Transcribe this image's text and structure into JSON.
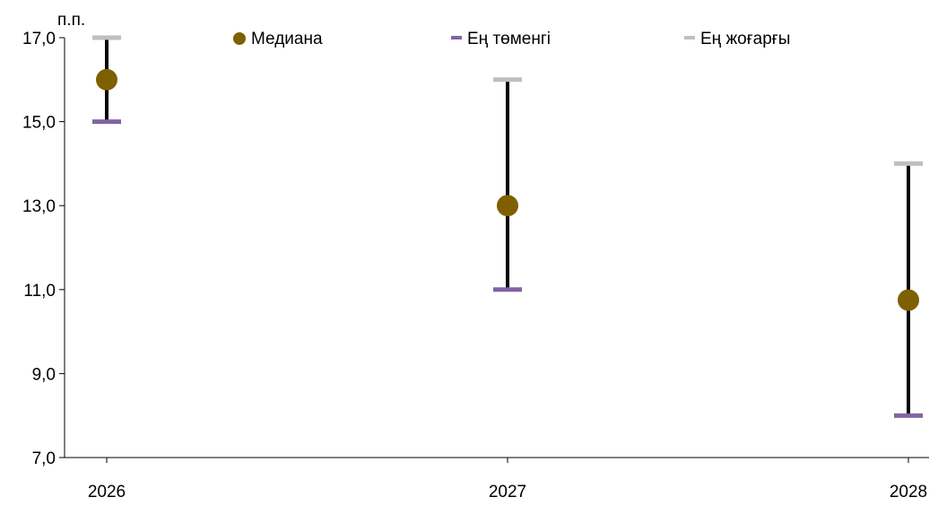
{
  "chart_data": {
    "type": "scatter",
    "ylabel": "п.п.",
    "categories": [
      "2026",
      "2027",
      "2028"
    ],
    "ylim": [
      7,
      17
    ],
    "yticks": [
      "7,0",
      "9,0",
      "11,0",
      "13,0",
      "15,0",
      "17,0"
    ],
    "ytick_values": [
      7,
      9,
      11,
      13,
      15,
      17
    ],
    "legend_position": "top",
    "series": [
      {
        "name": "Медиана",
        "values": [
          16,
          13,
          10.75
        ],
        "color": "#7f6000"
      },
      {
        "name": "Ең төменгі",
        "values": [
          15,
          11,
          8
        ],
        "color": "#8064a2"
      },
      {
        "name": "Ең жоғарғы",
        "values": [
          17,
          16,
          14
        ],
        "color": "#bfbfbf"
      }
    ],
    "range_line_color": "#000000",
    "grid": false
  }
}
